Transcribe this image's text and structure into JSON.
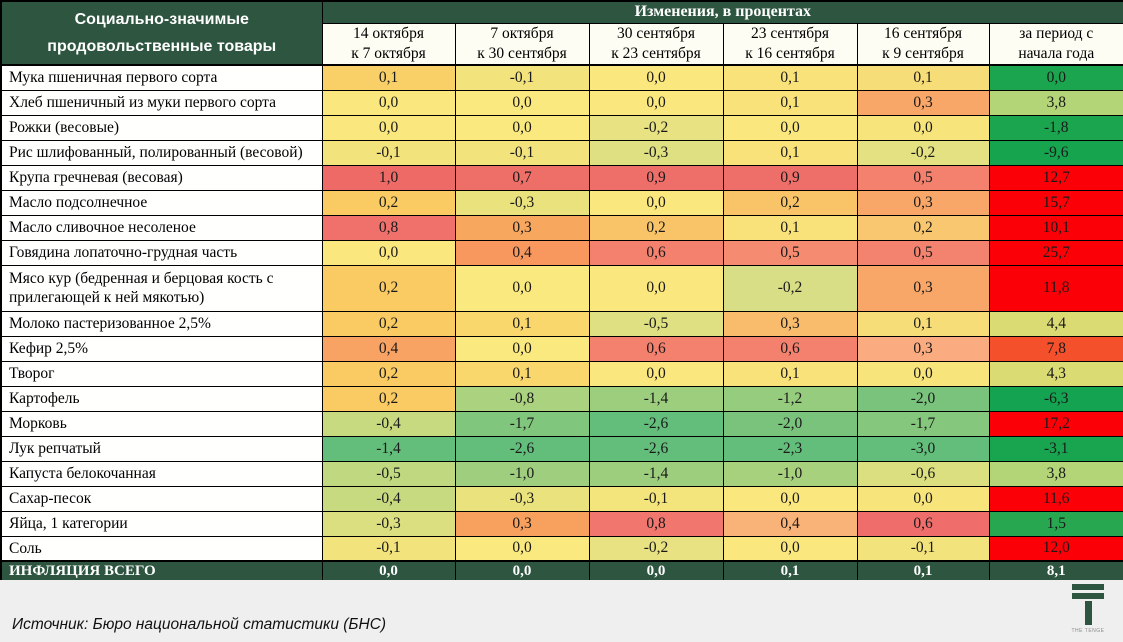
{
  "colors": {
    "header_green": "#2D5540",
    "footer_bg": "#EFEFEF",
    "scale_red": "#F8696B",
    "scale_yellow": "#FFEB84",
    "scale_green": "#63BE7B",
    "year_red": "#FB0007",
    "year_green": "#1CA54F"
  },
  "source": "Источник: Бюро национальной статистики (БНС)",
  "logo_caption": "THE TENGE",
  "chart_data": {
    "type": "heatmap",
    "title": "Социально-значимые\nпродовольственные товары",
    "subtitle": "Изменения, в процентах",
    "columns": [
      "14 октября\nк 7 октября",
      "7 октября\nк 30 сентября",
      "30 сентября\nк 23 сентября",
      "23 сентября\nк 16 сентября",
      "16 сентября\nк 9 сентября",
      "за период с\nначала года"
    ],
    "rows": [
      {
        "name": "Мука пшеничная первого сорта",
        "cells": [
          [
            "0,1",
            "#F9CF68"
          ],
          [
            "-0,1",
            "#F3E37C"
          ],
          [
            "0,0",
            "#FAE77D"
          ],
          [
            "0,1",
            "#F9E27A"
          ],
          [
            "0,1",
            "#F7DD78"
          ],
          [
            "0,0",
            "#1CA54F"
          ]
        ]
      },
      {
        "name": "Хлеб пшеничный из муки первого сорта",
        "cells": [
          [
            "0,0",
            "#FAE77D"
          ],
          [
            "0,0",
            "#FAE97E"
          ],
          [
            "0,0",
            "#FAE77D"
          ],
          [
            "0,1",
            "#F9E27A"
          ],
          [
            "0,3",
            "#F8A768"
          ],
          [
            "3,8",
            "#B3D577"
          ]
        ]
      },
      {
        "name": "Рожки (весовые)",
        "cells": [
          [
            "0,0",
            "#FAE77D"
          ],
          [
            "0,0",
            "#FAE97E"
          ],
          [
            "-0,2",
            "#E8E282"
          ],
          [
            "0,0",
            "#FAE77D"
          ],
          [
            "0,0",
            "#F7E47B"
          ],
          [
            "-1,8",
            "#1CA54F"
          ]
        ]
      },
      {
        "name": "Рис шлифованный, полированный (весовой)",
        "cells": [
          [
            "-0,1",
            "#F2E37C"
          ],
          [
            "-0,1",
            "#F3E37C"
          ],
          [
            "-0,3",
            "#DFE081"
          ],
          [
            "0,1",
            "#F9E27A"
          ],
          [
            "-0,2",
            "#E3E181"
          ],
          [
            "-9,6",
            "#17A44E"
          ]
        ]
      },
      {
        "name": "Крупа гречневая (весовая)",
        "cells": [
          [
            "1,0",
            "#ED6A66"
          ],
          [
            "0,7",
            "#EE6E68"
          ],
          [
            "0,9",
            "#EE6F69"
          ],
          [
            "0,9",
            "#EE6F69"
          ],
          [
            "0,5",
            "#F3816E"
          ],
          [
            "12,7",
            "#FB0007"
          ]
        ]
      },
      {
        "name": "Масло подсолнечное",
        "cells": [
          [
            "0,2",
            "#FACB63"
          ],
          [
            "-0,3",
            "#E9E27D"
          ],
          [
            "0,0",
            "#FAE77D"
          ],
          [
            "0,2",
            "#F9C468"
          ],
          [
            "0,3",
            "#F8A768"
          ],
          [
            "15,7",
            "#FB0007"
          ]
        ]
      },
      {
        "name": "Масло сливочное несоленое",
        "cells": [
          [
            "0,8",
            "#F0716C"
          ],
          [
            "0,3",
            "#F8A75F"
          ],
          [
            "0,2",
            "#F9C468"
          ],
          [
            "0,1",
            "#F9E27A"
          ],
          [
            "0,2",
            "#F9C76F"
          ],
          [
            "10,1",
            "#FB0007"
          ]
        ]
      },
      {
        "name": "Говядина лопаточно-грудная часть",
        "cells": [
          [
            "0,0",
            "#FAE77D"
          ],
          [
            "0,4",
            "#F8985E"
          ],
          [
            "0,6",
            "#F3816E"
          ],
          [
            "0,5",
            "#F58B70"
          ],
          [
            "0,5",
            "#F3826E"
          ],
          [
            "25,7",
            "#FB0007"
          ]
        ]
      },
      {
        "name": "Мясо кур (бедренная и берцовая кость с прилегающей к ней мякотью)",
        "tall": true,
        "cells": [
          [
            "0,2",
            "#FACB63"
          ],
          [
            "0,0",
            "#FAE97E"
          ],
          [
            "0,0",
            "#FAE77D"
          ],
          [
            "-0,2",
            "#D8DE85"
          ],
          [
            "0,3",
            "#F8A768"
          ],
          [
            "11,8",
            "#FB0007"
          ]
        ]
      },
      {
        "name": "Молоко пастеризованное 2,5%",
        "cells": [
          [
            "0,2",
            "#FACB63"
          ],
          [
            "0,1",
            "#FAD76C"
          ],
          [
            "-0,5",
            "#DEE081"
          ],
          [
            "0,3",
            "#F9BC6C"
          ],
          [
            "0,1",
            "#F7DD78"
          ],
          [
            "4,4",
            "#DBDB74"
          ]
        ]
      },
      {
        "name": "Кефир 2,5%",
        "cells": [
          [
            "0,4",
            "#F8A263"
          ],
          [
            "0,0",
            "#FAE97E"
          ],
          [
            "0,6",
            "#F3816E"
          ],
          [
            "0,6",
            "#F3816E"
          ],
          [
            "0,3",
            "#FAAB80"
          ],
          [
            "7,8",
            "#F4502B"
          ]
        ]
      },
      {
        "name": "Творог",
        "cells": [
          [
            "0,2",
            "#FACB63"
          ],
          [
            "0,1",
            "#FAD76C"
          ],
          [
            "0,0",
            "#FAE77D"
          ],
          [
            "0,1",
            "#F9E27A"
          ],
          [
            "0,0",
            "#F7E47B"
          ],
          [
            "4,3",
            "#DBDB74"
          ]
        ]
      },
      {
        "name": "Картофель",
        "cells": [
          [
            "0,2",
            "#FACB63"
          ],
          [
            "-0,8",
            "#ABD27E"
          ],
          [
            "-1,4",
            "#9CCE7E"
          ],
          [
            "-1,2",
            "#96CC7D"
          ],
          [
            "-2,0",
            "#79C37C"
          ],
          [
            "-6,3",
            "#13A351"
          ]
        ]
      },
      {
        "name": "Морковь",
        "cells": [
          [
            "-0,4",
            "#C7DA80"
          ],
          [
            "-1,7",
            "#81C67D"
          ],
          [
            "-2,6",
            "#63BE7B"
          ],
          [
            "-2,0",
            "#79C37C"
          ],
          [
            "-1,7",
            "#84C77D"
          ],
          [
            "17,2",
            "#FB0007"
          ]
        ]
      },
      {
        "name": "Лук репчатый",
        "cells": [
          [
            "-1,4",
            "#63BE7B"
          ],
          [
            "-2,6",
            "#63BE7B"
          ],
          [
            "-2,6",
            "#63BE7B"
          ],
          [
            "-2,3",
            "#63BE7B"
          ],
          [
            "-3,0",
            "#63BE7B"
          ],
          [
            "-3,1",
            "#19A44F"
          ]
        ]
      },
      {
        "name": "Капуста белокочанная",
        "cells": [
          [
            "-0,5",
            "#C0D87F"
          ],
          [
            "-1,0",
            "#9FCF7E"
          ],
          [
            "-1,4",
            "#9CCE7E"
          ],
          [
            "-1,0",
            "#A8D17E"
          ],
          [
            "-0,6",
            "#DCDF80"
          ],
          [
            "3,8",
            "#B3D577"
          ]
        ]
      },
      {
        "name": "Сахар-песок",
        "cells": [
          [
            "-0,4",
            "#C7DA80"
          ],
          [
            "-0,3",
            "#E9E27D"
          ],
          [
            "-0,1",
            "#F4E47C"
          ],
          [
            "0,0",
            "#FAE77D"
          ],
          [
            "0,0",
            "#F7E47B"
          ],
          [
            "11,6",
            "#FB0007"
          ]
        ]
      },
      {
        "name": "Яйца, 1 категории",
        "cells": [
          [
            "-0,3",
            "#DCDF80"
          ],
          [
            "0,3",
            "#F8A05D"
          ],
          [
            "0,8",
            "#F0766E"
          ],
          [
            "0,4",
            "#F9B277"
          ],
          [
            "0,6",
            "#EF6E6B"
          ],
          [
            "1,5",
            "#27A850"
          ]
        ]
      },
      {
        "name": "Соль",
        "cells": [
          [
            "-0,1",
            "#F2E37C"
          ],
          [
            "0,0",
            "#FAE97E"
          ],
          [
            "-0,2",
            "#E8E282"
          ],
          [
            "0,0",
            "#FAE77D"
          ],
          [
            "-0,1",
            "#F2E37C"
          ],
          [
            "12,0",
            "#FB0007"
          ]
        ]
      }
    ],
    "total_row": {
      "name": "ИНФЛЯЦИЯ ВСЕГО",
      "values": [
        "0,0",
        "0,0",
        "0,0",
        "0,1",
        "0,1",
        "8,1"
      ]
    }
  }
}
